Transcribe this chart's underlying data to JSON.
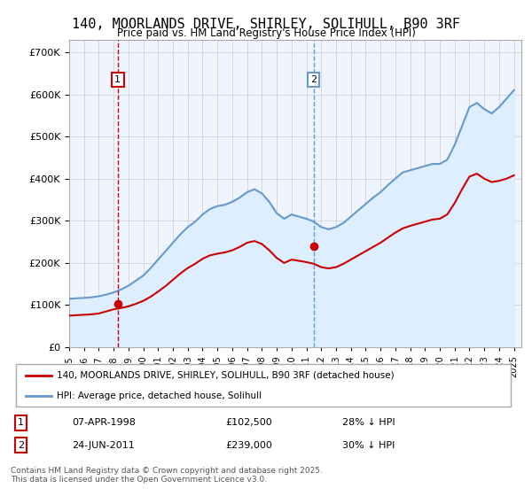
{
  "title": "140, MOORLANDS DRIVE, SHIRLEY, SOLIHULL, B90 3RF",
  "subtitle": "Price paid vs. HM Land Registry's House Price Index (HPI)",
  "copyright": "Contains HM Land Registry data © Crown copyright and database right 2025.\nThis data is licensed under the Open Government Licence v3.0.",
  "legend_line1": "140, MOORLANDS DRIVE, SHIRLEY, SOLIHULL, B90 3RF (detached house)",
  "legend_line2": "HPI: Average price, detached house, Solihull",
  "sale1_label": "1",
  "sale1_date": "07-APR-1998",
  "sale1_price": "£102,500",
  "sale1_hpi": "28% ↓ HPI",
  "sale1_year": 1998.27,
  "sale1_value": 102500,
  "sale2_label": "2",
  "sale2_date": "24-JUN-2011",
  "sale2_price": "£239,000",
  "sale2_hpi": "30% ↓ HPI",
  "sale2_year": 2011.48,
  "sale2_value": 239000,
  "price_line_color": "#cc0000",
  "hpi_line_color": "#6699cc",
  "hpi_fill_color": "#ddeeff",
  "marker_line_color": "#cc0000",
  "marker2_line_color": "#6699cc",
  "grid_color": "#cccccc",
  "background_color": "#f0f4ff",
  "ylim": [
    0,
    730000
  ],
  "xlim_start": 1995,
  "xlim_end": 2025.5,
  "hpi_x": [
    1995,
    1995.5,
    1996,
    1996.5,
    1997,
    1997.5,
    1998,
    1998.5,
    1999,
    1999.5,
    2000,
    2000.5,
    2001,
    2001.5,
    2002,
    2002.5,
    2003,
    2003.5,
    2004,
    2004.5,
    2005,
    2005.5,
    2006,
    2006.5,
    2007,
    2007.5,
    2008,
    2008.5,
    2009,
    2009.5,
    2010,
    2010.5,
    2011,
    2011.5,
    2012,
    2012.5,
    2013,
    2013.5,
    2014,
    2014.5,
    2015,
    2015.5,
    2016,
    2016.5,
    2017,
    2017.5,
    2018,
    2018.5,
    2019,
    2019.5,
    2020,
    2020.5,
    2021,
    2021.5,
    2022,
    2022.5,
    2023,
    2023.5,
    2024,
    2024.5,
    2025
  ],
  "hpi_y": [
    115000,
    116000,
    117000,
    118500,
    121000,
    125000,
    130000,
    137000,
    146000,
    158000,
    170000,
    188000,
    208000,
    228000,
    248000,
    268000,
    285000,
    298000,
    315000,
    328000,
    335000,
    338000,
    345000,
    355000,
    368000,
    375000,
    365000,
    345000,
    318000,
    305000,
    315000,
    310000,
    305000,
    298000,
    285000,
    280000,
    285000,
    295000,
    310000,
    325000,
    340000,
    355000,
    368000,
    385000,
    400000,
    415000,
    420000,
    425000,
    430000,
    435000,
    435000,
    445000,
    480000,
    525000,
    570000,
    580000,
    565000,
    555000,
    570000,
    590000,
    610000
  ],
  "price_x": [
    1995,
    1995.5,
    1996,
    1996.5,
    1997,
    1997.5,
    1998,
    1998.5,
    1999,
    1999.5,
    2000,
    2000.5,
    2001,
    2001.5,
    2002,
    2002.5,
    2003,
    2003.5,
    2004,
    2004.5,
    2005,
    2005.5,
    2006,
    2006.5,
    2007,
    2007.5,
    2008,
    2008.5,
    2009,
    2009.5,
    2010,
    2010.5,
    2011,
    2011.5,
    2012,
    2012.5,
    2013,
    2013.5,
    2014,
    2014.5,
    2015,
    2015.5,
    2016,
    2016.5,
    2017,
    2017.5,
    2018,
    2018.5,
    2019,
    2019.5,
    2020,
    2020.5,
    2021,
    2021.5,
    2022,
    2022.5,
    2023,
    2023.5,
    2024,
    2024.5,
    2025
  ],
  "price_y": [
    75000,
    76000,
    77000,
    78000,
    80000,
    85000,
    90000,
    93000,
    97000,
    103000,
    110000,
    120000,
    132000,
    145000,
    160000,
    175000,
    188000,
    198000,
    210000,
    218000,
    222000,
    225000,
    230000,
    238000,
    248000,
    252000,
    245000,
    230000,
    212000,
    200000,
    208000,
    205000,
    202000,
    198000,
    190000,
    187000,
    190000,
    198000,
    208000,
    218000,
    228000,
    238000,
    248000,
    260000,
    272000,
    282000,
    288000,
    293000,
    298000,
    303000,
    305000,
    315000,
    342000,
    375000,
    405000,
    412000,
    400000,
    392000,
    395000,
    400000,
    408000
  ]
}
